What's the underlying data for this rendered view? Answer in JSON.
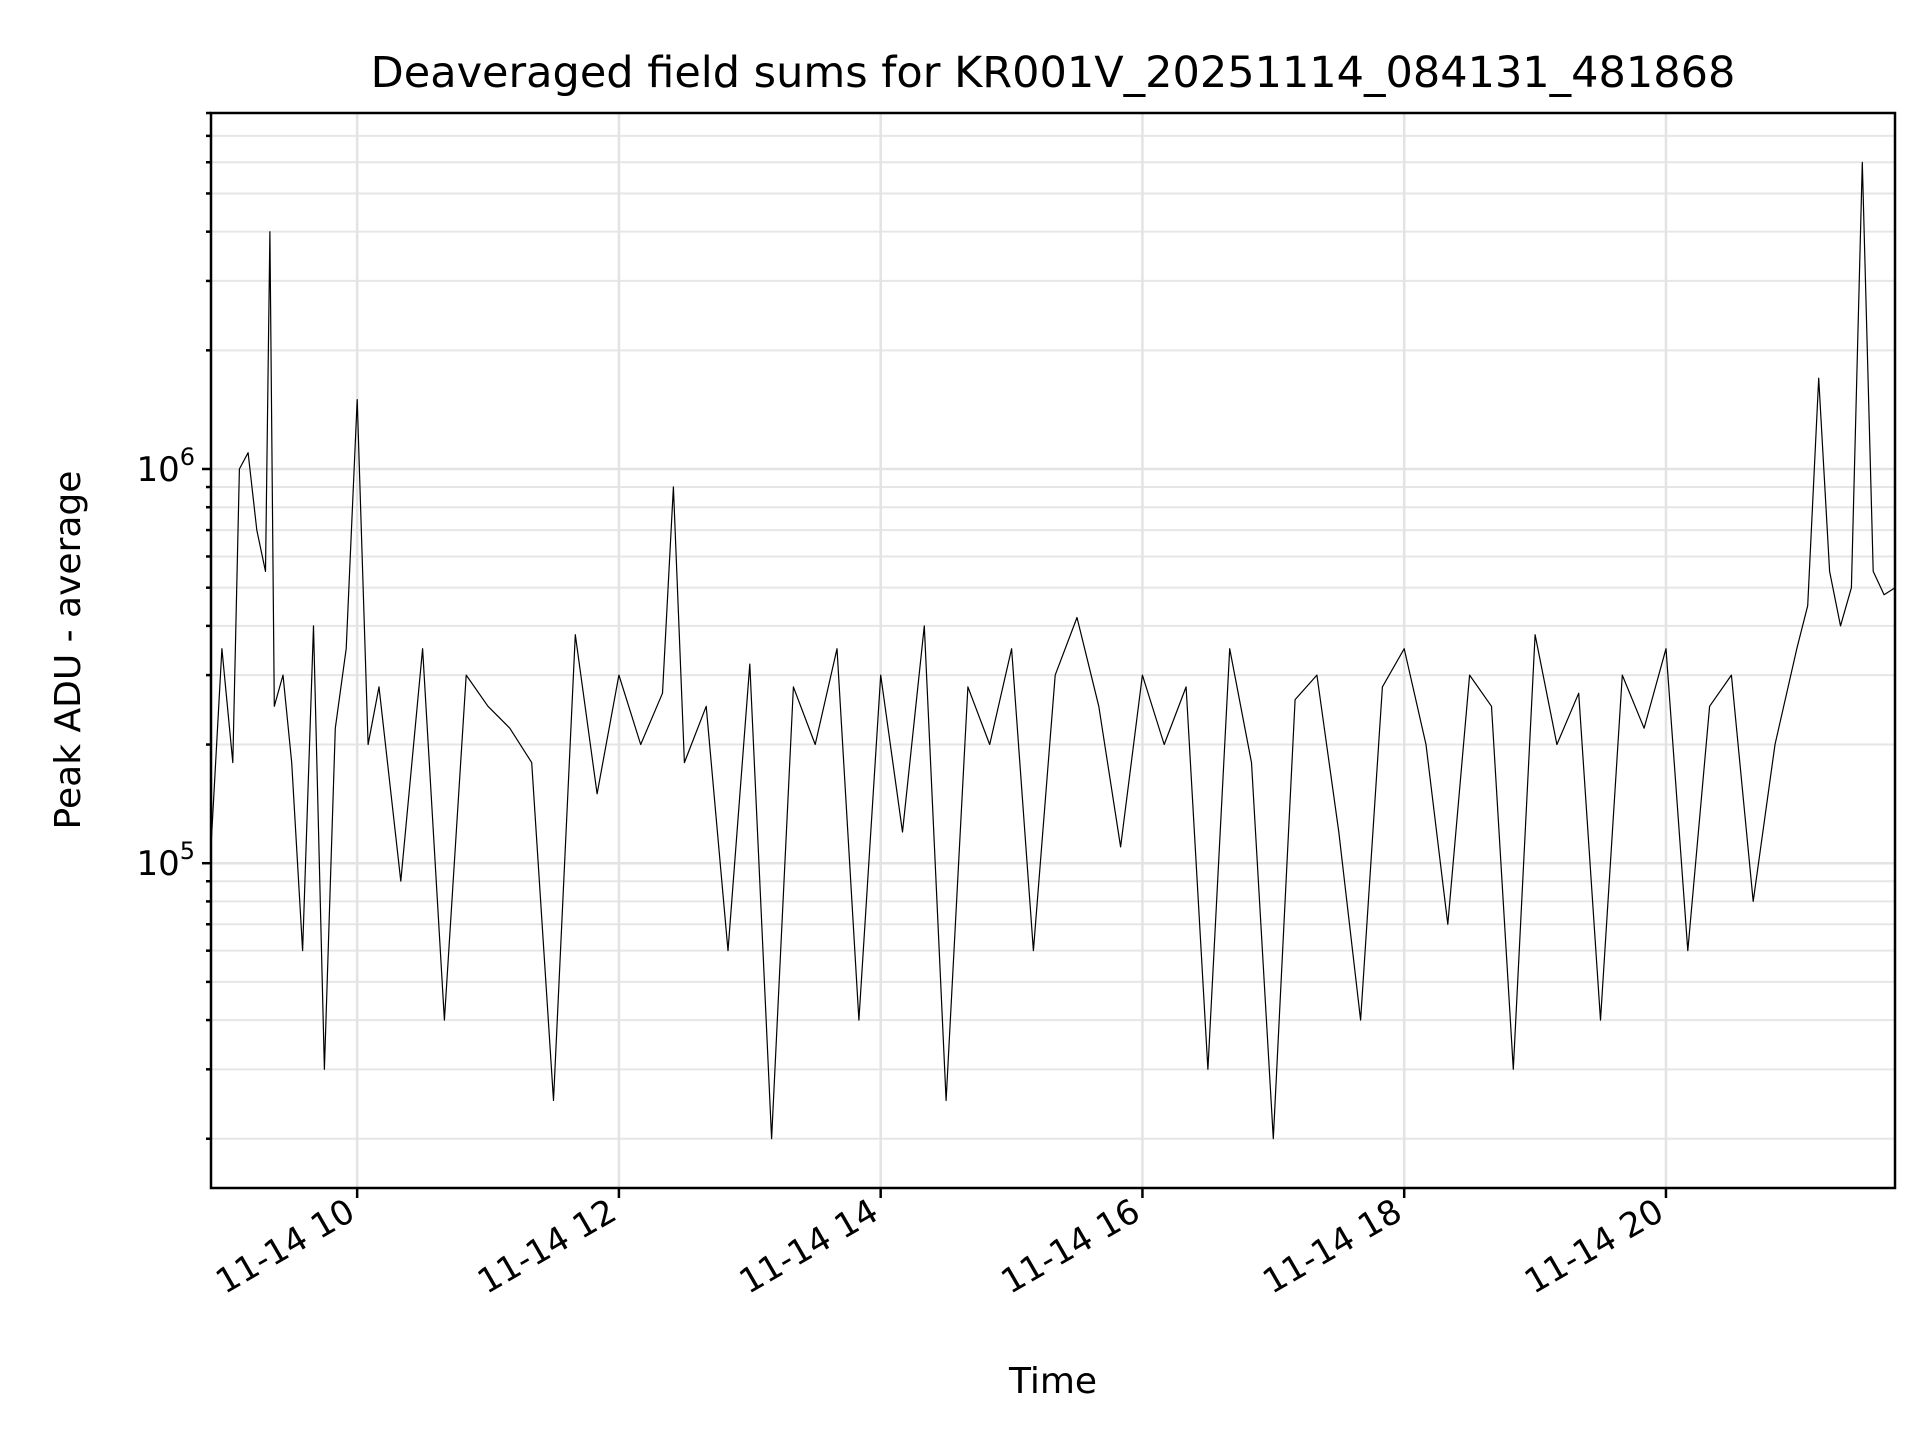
{
  "chart_data": {
    "type": "line",
    "title": "Deaveraged field sums for KR001V_20251114_084131_481868",
    "xlabel": "Time",
    "ylabel": "Peak ADU - average",
    "yscale": "log",
    "grid": true,
    "series_color": "#000000",
    "x_range": [
      "11-14 08:53",
      "11-14 21:45"
    ],
    "ylim": [
      15000,
      8000000
    ],
    "x_ticks": [
      "11-14 10",
      "11-14 12",
      "11-14 14",
      "11-14 16",
      "11-14 18",
      "11-14 20"
    ],
    "y_ticks": [
      {
        "base": "10",
        "exp": "5",
        "value": 100000
      },
      {
        "base": "10",
        "exp": "6",
        "value": 1000000
      }
    ],
    "series": [
      {
        "x": [
          "11-14 08:53",
          "11-14 08:58",
          "11-14 09:03",
          "11-14 09:06",
          "11-14 09:10",
          "11-14 09:14",
          "11-14 09:18",
          "11-14 09:20",
          "11-14 09:22",
          "11-14 09:26",
          "11-14 09:30",
          "11-14 09:35",
          "11-14 09:40",
          "11-14 09:45",
          "11-14 09:50",
          "11-14 09:55",
          "11-14 10:00",
          "11-14 10:05",
          "11-14 10:10",
          "11-14 10:20",
          "11-14 10:30",
          "11-14 10:40",
          "11-14 10:50",
          "11-14 11:00",
          "11-14 11:10",
          "11-14 11:20",
          "11-14 11:30",
          "11-14 11:40",
          "11-14 11:50",
          "11-14 12:00",
          "11-14 12:10",
          "11-14 12:20",
          "11-14 12:25",
          "11-14 12:30",
          "11-14 12:40",
          "11-14 12:50",
          "11-14 13:00",
          "11-14 13:10",
          "11-14 13:20",
          "11-14 13:30",
          "11-14 13:40",
          "11-14 13:50",
          "11-14 14:00",
          "11-14 14:10",
          "11-14 14:20",
          "11-14 14:30",
          "11-14 14:40",
          "11-14 14:50",
          "11-14 15:00",
          "11-14 15:10",
          "11-14 15:20",
          "11-14 15:30",
          "11-14 15:40",
          "11-14 15:50",
          "11-14 16:00",
          "11-14 16:10",
          "11-14 16:20",
          "11-14 16:30",
          "11-14 16:40",
          "11-14 16:50",
          "11-14 17:00",
          "11-14 17:10",
          "11-14 17:20",
          "11-14 17:30",
          "11-14 17:40",
          "11-14 17:50",
          "11-14 18:00",
          "11-14 18:10",
          "11-14 18:20",
          "11-14 18:30",
          "11-14 18:40",
          "11-14 18:50",
          "11-14 19:00",
          "11-14 19:10",
          "11-14 19:20",
          "11-14 19:30",
          "11-14 19:40",
          "11-14 19:50",
          "11-14 20:00",
          "11-14 20:10",
          "11-14 20:20",
          "11-14 20:30",
          "11-14 20:40",
          "11-14 20:50",
          "11-14 21:00",
          "11-14 21:05",
          "11-14 21:10",
          "11-14 21:15",
          "11-14 21:20",
          "11-14 21:25",
          "11-14 21:30",
          "11-14 21:35",
          "11-14 21:40",
          "11-14 21:45"
        ],
        "y": [
          110000,
          350000,
          180000,
          1000000,
          1100000,
          700000,
          550000,
          4000000,
          250000,
          300000,
          180000,
          60000,
          400000,
          30000,
          220000,
          350000,
          1500000,
          200000,
          280000,
          90000,
          350000,
          40000,
          300000,
          250000,
          220000,
          180000,
          25000,
          380000,
          150000,
          300000,
          200000,
          270000,
          900000,
          180000,
          250000,
          60000,
          320000,
          20000,
          280000,
          200000,
          350000,
          40000,
          300000,
          120000,
          400000,
          25000,
          280000,
          200000,
          350000,
          60000,
          300000,
          420000,
          250000,
          110000,
          300000,
          200000,
          280000,
          30000,
          350000,
          180000,
          20000,
          260000,
          300000,
          120000,
          40000,
          280000,
          350000,
          200000,
          70000,
          300000,
          250000,
          30000,
          380000,
          200000,
          270000,
          40000,
          300000,
          220000,
          350000,
          60000,
          250000,
          300000,
          80000,
          200000,
          350000,
          450000,
          1700000,
          550000,
          400000,
          500000,
          6000000,
          550000,
          480000,
          500000
        ]
      }
    ]
  }
}
